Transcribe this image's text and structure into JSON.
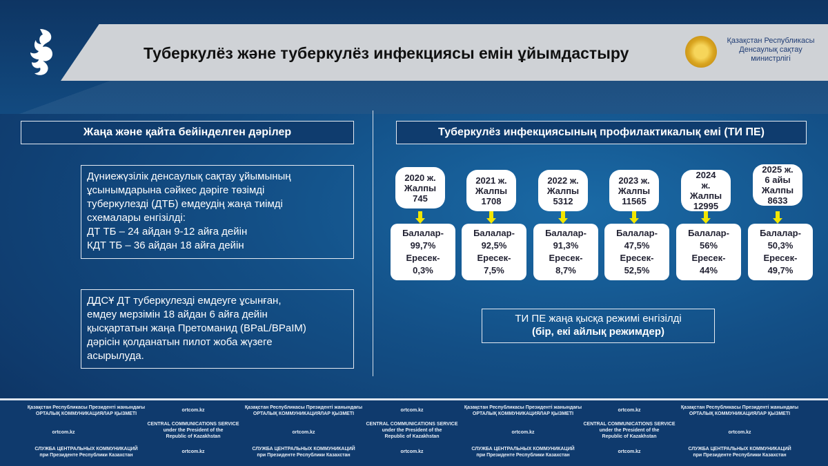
{
  "header": {
    "title": "Туберкулёз және туберкулёз инфекциясы емін ұйымдастыру",
    "ministry": [
      "Қазақстан Республикасы",
      "Денсаулық сақтау",
      "министрлігі"
    ]
  },
  "left": {
    "heading": "Жаңа және қайта бейінделген дәрілер",
    "box1": [
      "Дүниежүзілік денсаулық сақтау ұйымының",
      "ұсынымдарына сәйкес дәріге төзімді",
      "туберкулезді (ДТБ) емдеудің жаңа тиімді",
      "схемалары енгізілді:",
      "ДТ ТБ – 24 айдан 9-12 айға дейін",
      "КДТ ТБ – 36 айдан 18 айға дейін"
    ],
    "box2": [
      "ДДСҰ ДТ туберкулезді емдеуге ұсынған,",
      "емдеу мерзімін 18 айдан 6 айға дейін",
      "қысқартатын жаңа Претоманид (BPaL/BPaIM)",
      "дәрісін қолданатын пилот жоба жүзеге",
      "асырылуда."
    ]
  },
  "right": {
    "heading": "Туберкулёз инфекциясының профилактикалық емі (ТИ ПЕ)",
    "years": [
      {
        "top": [
          "2020 ж.",
          "Жалпы",
          "745"
        ],
        "bottom": [
          "Балалар-",
          "99,7%",
          "Ересек-",
          "0,3%"
        ]
      },
      {
        "top": [
          "2021 ж.",
          "Жалпы",
          "1708"
        ],
        "bottom": [
          "Балалар-",
          "92,5%",
          "Ересек-",
          "7,5%"
        ]
      },
      {
        "top": [
          "2022 ж.",
          "Жалпы",
          "5312"
        ],
        "bottom": [
          "Балалар-",
          "91,3%",
          "Ересек-",
          "8,7%"
        ]
      },
      {
        "top": [
          "2023 ж.",
          "Жалпы",
          "11565"
        ],
        "bottom": [
          "Балалар-",
          "47,5%",
          "Ересек-",
          "52,5%"
        ]
      },
      {
        "top": [
          "2024",
          "ж.",
          "Жалпы",
          "12995"
        ],
        "bottom": [
          "Балалар-",
          "56%",
          "Ересек-",
          "44%"
        ]
      },
      {
        "top": [
          "2025 ж.",
          "6 айы",
          "Жалпы",
          "8633"
        ],
        "bottom": [
          "Балалар-",
          "50,3%",
          "Ересек-",
          "49,7%"
        ]
      }
    ],
    "note": [
      "ТИ ПЕ жаңа қысқа режимі енгізілді",
      "(бір, екі айлық режимдер)"
    ],
    "arrow_color": "#f2e600"
  },
  "footer": {
    "kz": [
      "Қазақстан Республикасы Президенті жанындағы",
      "ОРТАЛЫҚ КОММУНИКАЦИЯЛАР ҚЫЗМЕТІ"
    ],
    "en": [
      "CENTRAL COMMUNICATIONS SERVICE",
      "under the President of the",
      "Republic of Kazakhstan"
    ],
    "ru": [
      "СЛУЖБА ЦЕНТРАЛЬНЫХ КОММУНИКАЦИЙ",
      "при Президенте Республики Казахстан"
    ],
    "site": "ortcom.kz"
  }
}
